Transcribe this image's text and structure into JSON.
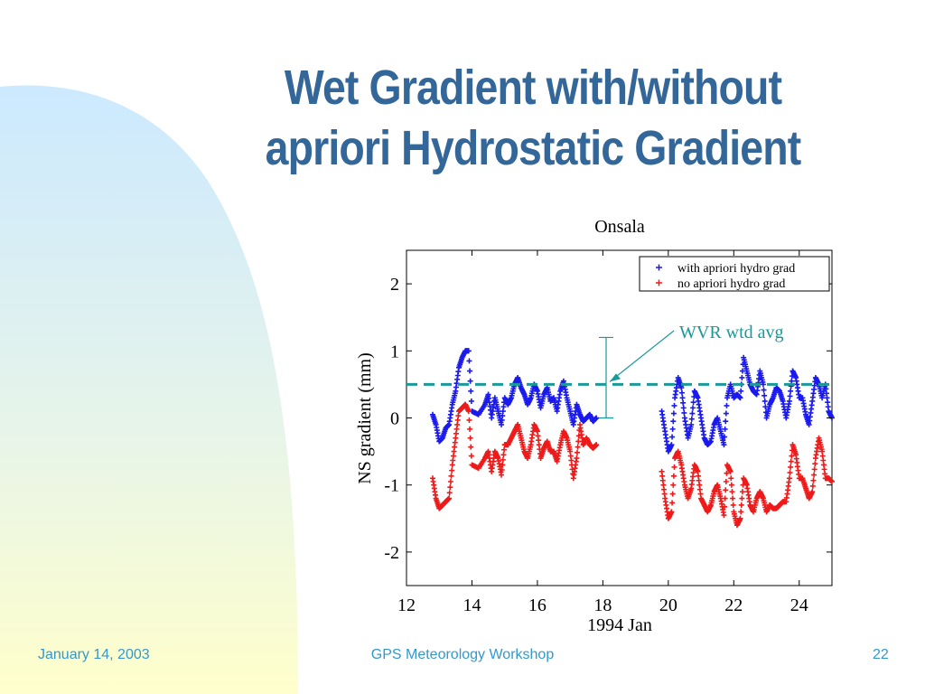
{
  "slide": {
    "title_line1": "Wet Gradient with/without",
    "title_line2": "apriori Hydrostatic Gradient",
    "footer_date": "January 14, 2003",
    "footer_event": "GPS Meteorology Workshop",
    "footer_page": "22"
  },
  "colors": {
    "title": "#336699",
    "footer": "#3399cc",
    "series_with": "#1a1aee",
    "series_no": "#ee1a1a",
    "wvr": "#1a9999"
  },
  "chart_data": {
    "type": "scatter",
    "title": "Onsala",
    "xlabel": "1994 Jan",
    "ylabel": "NS gradient (mm)",
    "xlim": [
      12,
      25
    ],
    "ylim": [
      -2.5,
      2.5
    ],
    "xticks": [
      12,
      14,
      16,
      18,
      20,
      22,
      24
    ],
    "yticks": [
      2,
      1,
      0,
      -1,
      -2
    ],
    "legend_position": "top-right",
    "marker": "+",
    "series": [
      {
        "name": "with apriori hydro grad",
        "color": "#1a1aee",
        "x": [
          12.8,
          12.9,
          13.0,
          13.1,
          13.2,
          13.3,
          13.4,
          13.5,
          13.6,
          13.7,
          13.8,
          13.9,
          14.0,
          14.2,
          14.4,
          14.5,
          14.6,
          14.7,
          14.8,
          14.9,
          15.0,
          15.1,
          15.2,
          15.3,
          15.4,
          15.5,
          15.6,
          15.7,
          15.8,
          15.9,
          16.0,
          16.1,
          16.2,
          16.3,
          16.4,
          16.5,
          16.6,
          16.7,
          16.8,
          16.9,
          17.0,
          17.1,
          17.2,
          17.3,
          17.4,
          17.5,
          17.6,
          17.7,
          17.8,
          19.8,
          19.9,
          20.0,
          20.1,
          20.2,
          20.3,
          20.4,
          20.5,
          20.6,
          20.7,
          20.8,
          20.9,
          21.0,
          21.1,
          21.2,
          21.3,
          21.4,
          21.5,
          21.6,
          21.7,
          21.8,
          21.9,
          22.0,
          22.1,
          22.2,
          22.3,
          22.4,
          22.5,
          22.6,
          22.7,
          22.8,
          22.9,
          23.0,
          23.1,
          23.2,
          23.3,
          23.4,
          23.5,
          23.6,
          23.7,
          23.8,
          23.9,
          24.0,
          24.1,
          24.2,
          24.3,
          24.4,
          24.5,
          24.6,
          24.7,
          24.8,
          24.9,
          25.0
        ],
        "y": [
          0.05,
          -0.1,
          -0.35,
          -0.3,
          -0.15,
          -0.1,
          0.2,
          0.4,
          0.75,
          0.9,
          1.0,
          1.0,
          0.1,
          0.05,
          0.2,
          0.35,
          0.0,
          0.3,
          0.1,
          -0.1,
          0.3,
          0.2,
          0.3,
          0.5,
          0.6,
          0.45,
          0.35,
          0.2,
          0.3,
          0.5,
          0.4,
          0.15,
          0.35,
          0.45,
          0.25,
          0.3,
          0.1,
          0.4,
          0.55,
          0.3,
          0.1,
          -0.1,
          0.2,
          0.05,
          -0.05,
          0.0,
          0.05,
          -0.05,
          0.0,
          0.1,
          -0.2,
          -0.5,
          -0.4,
          0.3,
          0.6,
          0.45,
          0.0,
          -0.3,
          -0.1,
          0.4,
          0.3,
          0.0,
          -0.3,
          -0.4,
          -0.35,
          -0.1,
          0.0,
          -0.2,
          -0.4,
          0.3,
          0.5,
          0.3,
          0.35,
          0.3,
          0.9,
          0.7,
          0.5,
          0.4,
          0.35,
          0.7,
          0.5,
          0.0,
          0.2,
          0.3,
          0.45,
          0.4,
          0.25,
          0.0,
          0.25,
          0.7,
          0.6,
          0.3,
          0.3,
          0.05,
          -0.1,
          0.25,
          0.6,
          0.5,
          0.3,
          0.5,
          0.1,
          0.0
        ]
      },
      {
        "name": "no apriori hydro grad",
        "color": "#ee1a1a",
        "x": [
          12.8,
          12.9,
          13.0,
          13.1,
          13.2,
          13.3,
          13.4,
          13.5,
          13.6,
          13.7,
          13.8,
          13.9,
          14.0,
          14.2,
          14.4,
          14.5,
          14.6,
          14.7,
          14.8,
          14.9,
          15.0,
          15.1,
          15.2,
          15.3,
          15.4,
          15.5,
          15.6,
          15.7,
          15.8,
          15.9,
          16.0,
          16.1,
          16.2,
          16.3,
          16.4,
          16.5,
          16.6,
          16.7,
          16.8,
          16.9,
          17.0,
          17.1,
          17.2,
          17.3,
          17.4,
          17.5,
          17.6,
          17.7,
          17.8,
          19.8,
          19.9,
          20.0,
          20.1,
          20.2,
          20.3,
          20.4,
          20.5,
          20.6,
          20.7,
          20.8,
          20.9,
          21.0,
          21.1,
          21.2,
          21.3,
          21.4,
          21.5,
          21.6,
          21.7,
          21.8,
          21.9,
          22.0,
          22.1,
          22.2,
          22.3,
          22.4,
          22.5,
          22.6,
          22.7,
          22.8,
          22.9,
          23.0,
          23.1,
          23.2,
          23.3,
          23.4,
          23.5,
          23.6,
          23.7,
          23.8,
          23.9,
          24.0,
          24.1,
          24.2,
          24.3,
          24.4,
          24.5,
          24.6,
          24.7,
          24.8,
          24.9,
          25.0
        ],
        "y": [
          -0.9,
          -1.2,
          -1.35,
          -1.3,
          -1.25,
          -1.2,
          -0.7,
          -0.3,
          0.1,
          0.15,
          0.2,
          0.1,
          -0.7,
          -0.75,
          -0.6,
          -0.5,
          -0.8,
          -0.5,
          -0.6,
          -0.85,
          -0.4,
          -0.4,
          -0.3,
          -0.2,
          -0.1,
          -0.3,
          -0.5,
          -0.6,
          -0.4,
          -0.1,
          -0.2,
          -0.6,
          -0.45,
          -0.35,
          -0.5,
          -0.5,
          -0.65,
          -0.4,
          -0.2,
          -0.3,
          -0.5,
          -0.9,
          -0.6,
          -0.1,
          -0.4,
          -0.3,
          -0.4,
          -0.45,
          -0.4,
          -0.8,
          -1.2,
          -1.5,
          -1.4,
          -0.6,
          -0.5,
          -0.7,
          -1.0,
          -1.2,
          -1.05,
          -0.7,
          -0.8,
          -1.2,
          -1.3,
          -1.4,
          -1.3,
          -1.1,
          -1.0,
          -1.2,
          -1.45,
          -0.7,
          -0.8,
          -1.4,
          -1.6,
          -1.5,
          -0.9,
          -1.0,
          -1.3,
          -1.4,
          -1.2,
          -1.1,
          -1.2,
          -1.4,
          -1.3,
          -1.35,
          -1.35,
          -1.3,
          -1.25,
          -1.25,
          -0.9,
          -0.4,
          -0.55,
          -0.9,
          -0.9,
          -1.05,
          -1.2,
          -1.1,
          -0.6,
          -0.3,
          -0.5,
          -0.9,
          -0.9,
          -0.95
        ]
      }
    ],
    "reference_line": {
      "y": 0.5,
      "style": "dashed",
      "color": "#1a9999"
    },
    "annotation": {
      "text": "WVR wtd avg",
      "errorbar": {
        "x": 18.1,
        "ymin": 0.0,
        "ymax": 1.2
      }
    }
  }
}
